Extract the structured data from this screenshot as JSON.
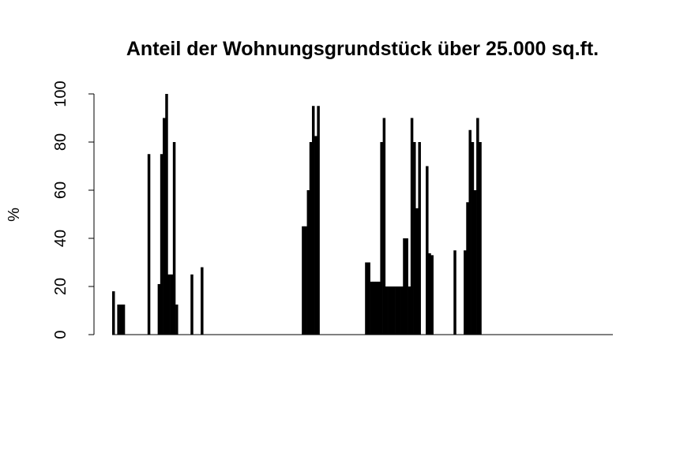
{
  "chart_data": {
    "type": "bar",
    "title": "Anteil der Wohnungsgrundstück über 25.000 sq.ft.",
    "xlabel": "",
    "ylabel": "%",
    "ylim": [
      0,
      100
    ],
    "yticks": [
      "0",
      "20",
      "40",
      "60",
      "80",
      "100"
    ],
    "ytick_values": [
      0,
      20,
      40,
      60,
      80,
      100
    ],
    "grid": false,
    "legend": "none",
    "bar_color": "#000000",
    "values": [
      18,
      0,
      12.5,
      12.5,
      12.5,
      0,
      0,
      0,
      0,
      0,
      0,
      0,
      0,
      0,
      75,
      0,
      0,
      0,
      21,
      75,
      90,
      100,
      25,
      25,
      80,
      12.5,
      0,
      0,
      0,
      0,
      0,
      25,
      0,
      0,
      0,
      28,
      0,
      0,
      0,
      0,
      0,
      0,
      0,
      0,
      0,
      0,
      0,
      0,
      0,
      0,
      0,
      0,
      0,
      0,
      0,
      0,
      0,
      0,
      0,
      0,
      0,
      0,
      0,
      0,
      0,
      0,
      0,
      0,
      0,
      0,
      0,
      0,
      0,
      0,
      0,
      45,
      45,
      60,
      80,
      95,
      82.5,
      95,
      0,
      0,
      0,
      0,
      0,
      0,
      0,
      0,
      0,
      0,
      0,
      0,
      0,
      0,
      0,
      0,
      0,
      0,
      30,
      30,
      22,
      22,
      22,
      22,
      80,
      90,
      20,
      20,
      20,
      20,
      20,
      20,
      20,
      40,
      40,
      20,
      90,
      80,
      52.5,
      80,
      0,
      0,
      70,
      33.8,
      33,
      0,
      0,
      0,
      0,
      0,
      0,
      0,
      0,
      35,
      0,
      0,
      0,
      35,
      55,
      85,
      80,
      60,
      90,
      80,
      0,
      0,
      0,
      0,
      0,
      0,
      0,
      0,
      0,
      0,
      0,
      0,
      0,
      0,
      0,
      0,
      0,
      0,
      0,
      0,
      0,
      0,
      0,
      0,
      0,
      0,
      0,
      0,
      0,
      0,
      0,
      0,
      0,
      0,
      0,
      0,
      0,
      0,
      0,
      0,
      0,
      0,
      0,
      0,
      0,
      0,
      0,
      0,
      0,
      0,
      0,
      0
    ]
  }
}
